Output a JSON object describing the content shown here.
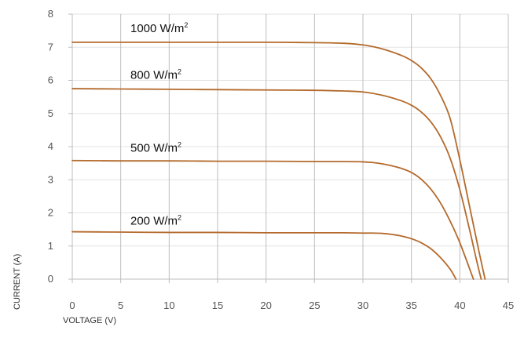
{
  "chart_data": {
    "type": "line",
    "title": "",
    "xlabel": "VOLTAGE (V)",
    "ylabel": "CURRENT (A)",
    "xlim": [
      0,
      45
    ],
    "ylim": [
      0,
      8
    ],
    "x_ticks": [
      0,
      5,
      10,
      15,
      20,
      25,
      30,
      35,
      40,
      45
    ],
    "y_ticks": [
      0,
      1,
      2,
      3,
      4,
      5,
      6,
      7,
      8
    ],
    "grid": {
      "vertical": true,
      "horizontal": true
    },
    "legend": "none",
    "line_color": "#b46a2c",
    "series": [
      {
        "label_parts": [
          "1000 W/m",
          "2"
        ],
        "label_at": {
          "x": 6,
          "y": 7.45
        },
        "x": [
          0,
          5,
          10,
          15,
          20,
          25,
          28,
          30,
          32,
          34,
          35,
          36,
          37,
          38,
          39,
          40,
          41,
          42,
          42.6
        ],
        "y": [
          7.15,
          7.15,
          7.15,
          7.15,
          7.15,
          7.14,
          7.12,
          7.07,
          6.95,
          6.75,
          6.6,
          6.38,
          6.05,
          5.55,
          4.85,
          3.6,
          2.2,
          0.8,
          0
        ]
      },
      {
        "label_parts": [
          "800 W/m",
          "2"
        ],
        "label_at": {
          "x": 6,
          "y": 6.05
        },
        "x": [
          0,
          5,
          10,
          15,
          20,
          25,
          28,
          30,
          32,
          34,
          35,
          36,
          37,
          38,
          39,
          40,
          41,
          41.7,
          42.2
        ],
        "y": [
          5.75,
          5.74,
          5.73,
          5.72,
          5.71,
          5.7,
          5.68,
          5.65,
          5.55,
          5.38,
          5.25,
          5.05,
          4.75,
          4.3,
          3.65,
          2.7,
          1.5,
          0.6,
          0
        ]
      },
      {
        "label_parts": [
          "500 W/m",
          "2"
        ],
        "label_at": {
          "x": 6,
          "y": 3.85
        },
        "x": [
          0,
          5,
          10,
          15,
          20,
          25,
          28,
          30,
          31,
          32,
          33,
          34,
          35,
          36,
          37,
          38,
          39,
          40,
          41.4
        ],
        "y": [
          3.58,
          3.57,
          3.57,
          3.56,
          3.56,
          3.55,
          3.55,
          3.54,
          3.52,
          3.48,
          3.42,
          3.34,
          3.22,
          3.02,
          2.72,
          2.3,
          1.75,
          1.1,
          0
        ]
      },
      {
        "label_parts": [
          "200 W/m",
          "2"
        ],
        "label_at": {
          "x": 6,
          "y": 1.65
        },
        "x": [
          0,
          5,
          10,
          15,
          20,
          25,
          28,
          30,
          31,
          32,
          33,
          34,
          35,
          36,
          37,
          38,
          39,
          39.6
        ],
        "y": [
          1.43,
          1.42,
          1.41,
          1.41,
          1.4,
          1.4,
          1.4,
          1.39,
          1.39,
          1.38,
          1.35,
          1.3,
          1.22,
          1.1,
          0.92,
          0.65,
          0.3,
          0
        ]
      }
    ]
  }
}
